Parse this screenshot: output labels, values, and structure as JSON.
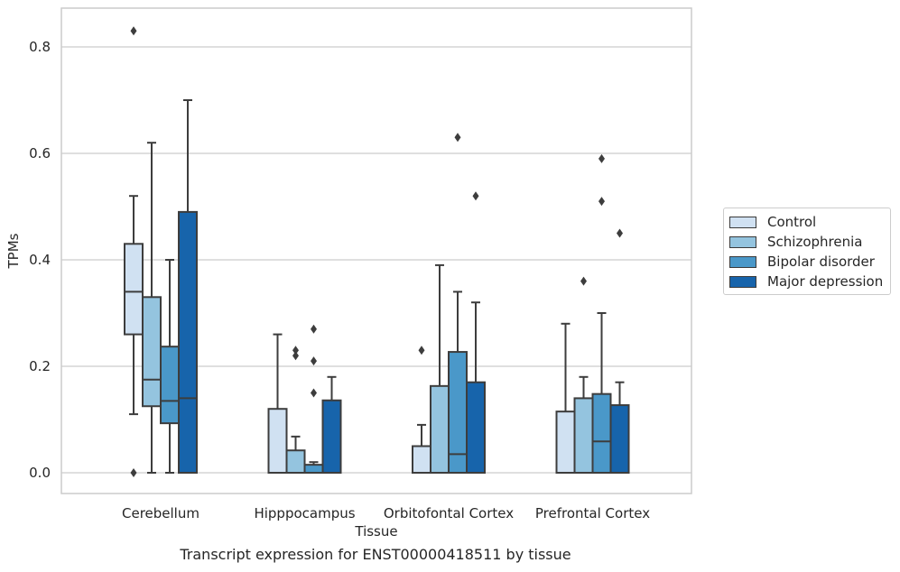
{
  "chart_data": {
    "type": "box",
    "title": "",
    "caption": "Transcript expression for ENST00000418511 by tissue",
    "xlabel": "Tissue",
    "ylabel": "TPMs",
    "ylim": [
      -0.04,
      0.875
    ],
    "yticks": [
      "0.0",
      "0.2",
      "0.4",
      "0.6",
      "0.8"
    ],
    "ytick_values": [
      0.0,
      0.2,
      0.4,
      0.6,
      0.8
    ],
    "grid": "horizontal",
    "legend_position": "right",
    "categories": [
      "Cerebellum",
      "Hipppocampus",
      "Orbitofontal Cortex",
      "Prefrontal Cortex"
    ],
    "series": [
      {
        "name": "Control",
        "color": "#d0e1f2",
        "boxes": [
          {
            "q1": 0.26,
            "median": 0.34,
            "q3": 0.43,
            "whisker_low": 0.11,
            "whisker_high": 0.52,
            "outliers": [
              0.83,
              0.0
            ]
          },
          {
            "q1": 0.0,
            "median": 0.0,
            "q3": 0.12,
            "whisker_low": 0.0,
            "whisker_high": 0.26,
            "outliers": []
          },
          {
            "q1": 0.0,
            "median": 0.0,
            "q3": 0.05,
            "whisker_low": 0.0,
            "whisker_high": 0.09,
            "outliers": [
              0.23
            ]
          },
          {
            "q1": 0.0,
            "median": 0.0,
            "q3": 0.115,
            "whisker_low": 0.0,
            "whisker_high": 0.28,
            "outliers": []
          }
        ]
      },
      {
        "name": "Schizophrenia",
        "color": "#94c4df",
        "boxes": [
          {
            "q1": 0.125,
            "median": 0.175,
            "q3": 0.33,
            "whisker_low": 0.0,
            "whisker_high": 0.62,
            "outliers": []
          },
          {
            "q1": 0.0,
            "median": 0.0,
            "q3": 0.042,
            "whisker_low": 0.0,
            "whisker_high": 0.068,
            "outliers": [
              0.22,
              0.23
            ]
          },
          {
            "q1": 0.0,
            "median": 0.0,
            "q3": 0.163,
            "whisker_low": 0.0,
            "whisker_high": 0.39,
            "outliers": []
          },
          {
            "q1": 0.0,
            "median": 0.0,
            "q3": 0.14,
            "whisker_low": 0.0,
            "whisker_high": 0.18,
            "outliers": [
              0.36
            ]
          }
        ]
      },
      {
        "name": "Bipolar disorder",
        "color": "#4a98c9",
        "boxes": [
          {
            "q1": 0.093,
            "median": 0.135,
            "q3": 0.237,
            "whisker_low": 0.0,
            "whisker_high": 0.4,
            "outliers": []
          },
          {
            "q1": 0.0,
            "median": 0.0,
            "q3": 0.015,
            "whisker_low": 0.0,
            "whisker_high": 0.02,
            "outliers": [
              0.15,
              0.21,
              0.27
            ]
          },
          {
            "q1": 0.0,
            "median": 0.035,
            "q3": 0.227,
            "whisker_low": 0.0,
            "whisker_high": 0.34,
            "outliers": [
              0.63
            ]
          },
          {
            "q1": 0.0,
            "median": 0.059,
            "q3": 0.148,
            "whisker_low": 0.0,
            "whisker_high": 0.3,
            "outliers": [
              0.51,
              0.59
            ]
          }
        ]
      },
      {
        "name": "Major depression",
        "color": "#1764ab",
        "boxes": [
          {
            "q1": 0.0,
            "median": 0.14,
            "q3": 0.49,
            "whisker_low": 0.0,
            "whisker_high": 0.7,
            "outliers": []
          },
          {
            "q1": 0.0,
            "median": 0.0,
            "q3": 0.136,
            "whisker_low": 0.0,
            "whisker_high": 0.18,
            "outliers": []
          },
          {
            "q1": 0.0,
            "median": 0.0,
            "q3": 0.17,
            "whisker_low": 0.0,
            "whisker_high": 0.32,
            "outliers": [
              0.52
            ]
          },
          {
            "q1": 0.0,
            "median": 0.0,
            "q3": 0.127,
            "whisker_low": 0.0,
            "whisker_high": 0.17,
            "outliers": [
              0.45
            ]
          }
        ]
      }
    ]
  }
}
